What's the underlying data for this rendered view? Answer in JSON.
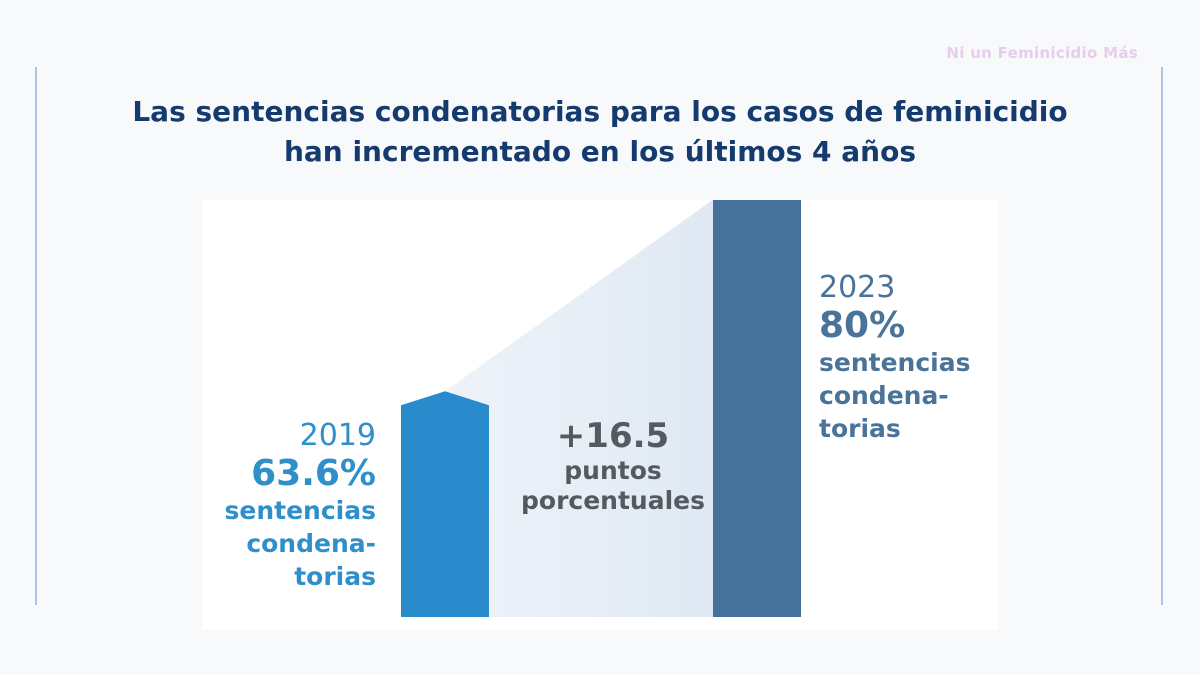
{
  "brand": "Ni un Feminicidio Más",
  "title_line1": "Las sentencias condenatorias para los casos de feminicidio",
  "title_line2": "han incrementado en los últimos 4 años",
  "chart_data": {
    "type": "bar",
    "categories": [
      "2019",
      "2023"
    ],
    "values": [
      63.6,
      80
    ],
    "unit": "%",
    "bar_colors": [
      "#2a8bcc",
      "#44729a"
    ],
    "labels": [
      {
        "year": "2019",
        "value_text": "63.6%",
        "desc": "sentencias\ncondena-\ntorias"
      },
      {
        "year": "2023",
        "value_text": "80%",
        "desc": "sentencias\ncondena-\ntorias"
      }
    ],
    "difference": {
      "value_text": "+16.5",
      "desc": "puntos\nporcentuales"
    }
  }
}
